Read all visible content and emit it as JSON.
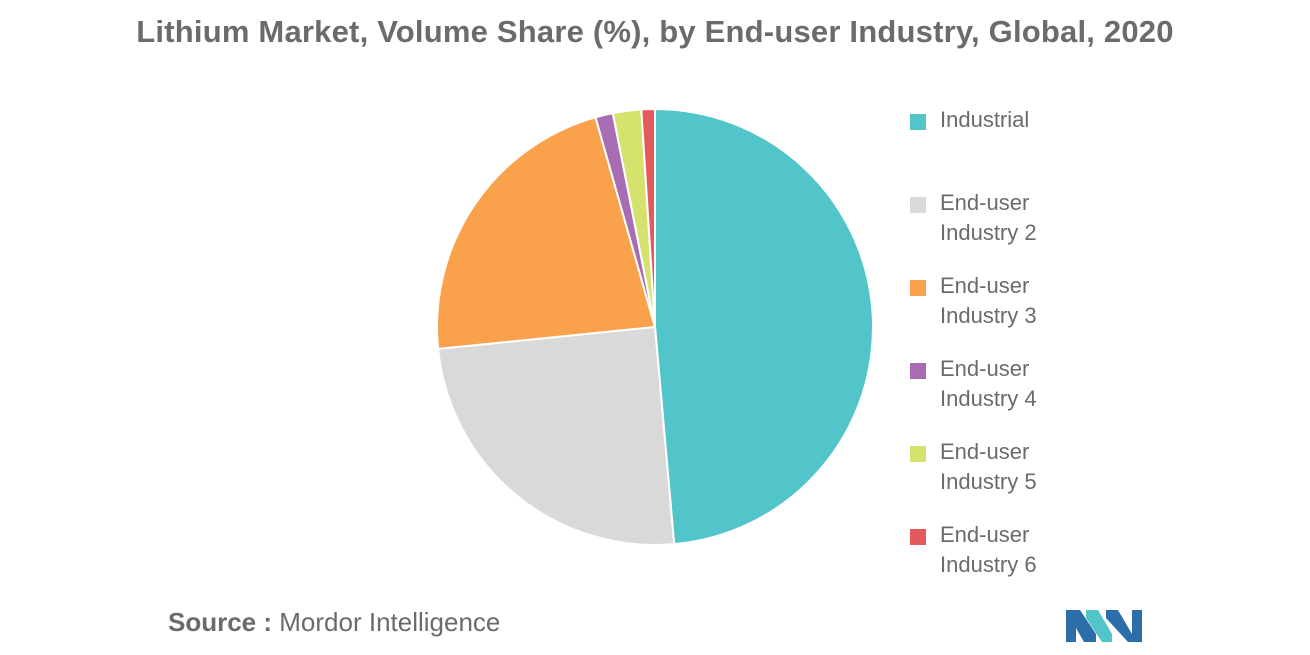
{
  "chart_data": {
    "type": "pie",
    "title": "Lithium Market, Volume Share (%), by End-user Industry, Global, 2020",
    "categories": [
      "Industrial",
      "End-user Industry 2",
      "End-user Industry 3",
      "End-user Industry 4",
      "End-user Industry 5",
      "End-user Industry 6"
    ],
    "values": [
      48.6,
      24.8,
      22.2,
      1.3,
      2.1,
      1.0
    ],
    "colors": [
      "#52c5cb",
      "#d9d9d9",
      "#f9a24b",
      "#a86cb3",
      "#d5e36e",
      "#e35a5a"
    ],
    "start_angle_deg": 0,
    "direction": "clockwise",
    "legend_position": "right",
    "legend": [
      {
        "line1": "Industrial",
        "line2": ""
      },
      {
        "line1": "End-user",
        "line2": "Industry 2"
      },
      {
        "line1": "End-user",
        "line2": "Industry 3"
      },
      {
        "line1": "End-user",
        "line2": "Industry 4"
      },
      {
        "line1": "End-user",
        "line2": "Industry 5"
      },
      {
        "line1": "End-user",
        "line2": "Industry 6"
      }
    ]
  },
  "source": {
    "prefix": "Source :",
    "text": "Mordor Intelligence"
  },
  "logo": {
    "colors": [
      "#2c6fa8",
      "#52c5cb"
    ]
  }
}
